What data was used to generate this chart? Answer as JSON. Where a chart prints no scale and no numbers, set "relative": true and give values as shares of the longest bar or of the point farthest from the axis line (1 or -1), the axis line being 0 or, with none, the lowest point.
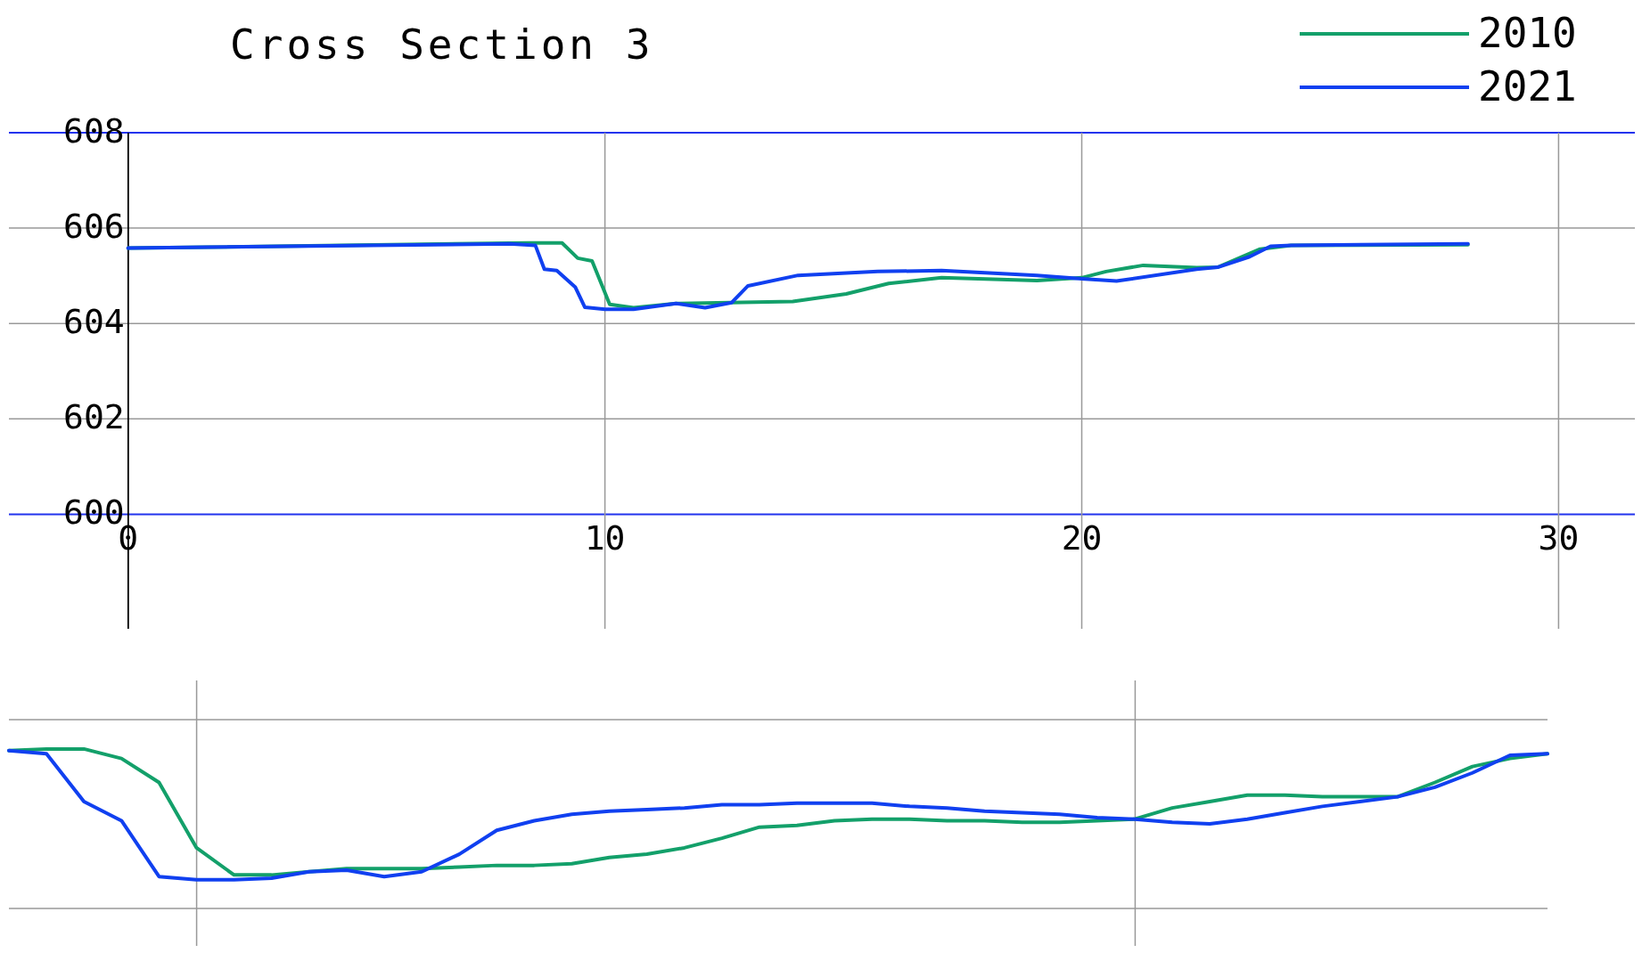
{
  "chart_data": [
    {
      "type": "line",
      "title": "Cross Section 3",
      "xlim": [
        -2.5,
        31.6
      ],
      "ylim": [
        597.6,
        608
      ],
      "xticks": [
        0,
        10,
        20,
        30
      ],
      "yticks": [
        600,
        602,
        604,
        606,
        608
      ],
      "grid": true,
      "legend": "top right",
      "series": [
        {
          "name": "2010",
          "color": "#13a06a",
          "x": [
            0,
            8.4,
            9.1,
            9.43,
            9.73,
            10.1,
            10.6,
            11.49,
            13.94,
            15.06,
            15.95,
            17.06,
            19.06,
            20.0,
            20.51,
            21.29,
            22.41,
            22.85,
            23.74,
            24.39,
            28.1
          ],
          "values": [
            605.58,
            605.69,
            605.69,
            605.37,
            605.31,
            604.4,
            604.33,
            604.42,
            604.46,
            604.62,
            604.84,
            604.96,
            604.9,
            604.96,
            605.09,
            605.22,
            605.17,
            605.18,
            605.56,
            605.64,
            605.65
          ]
        },
        {
          "name": "2021",
          "color": "#1040f0",
          "x": [
            0,
            8.0,
            8.54,
            8.73,
            8.99,
            9.38,
            9.58,
            10.0,
            10.6,
            11.49,
            12.1,
            12.66,
            13.0,
            14.05,
            15.72,
            17.06,
            19.06,
            20.0,
            20.73,
            22.41,
            22.85,
            23.52,
            23.96,
            24.39,
            28.1
          ],
          "values": [
            605.58,
            605.67,
            605.64,
            605.14,
            605.11,
            604.76,
            604.34,
            604.3,
            604.3,
            604.42,
            604.33,
            604.44,
            604.79,
            605.01,
            605.09,
            605.11,
            605.01,
            604.94,
            604.89,
            605.14,
            605.18,
            605.4,
            605.62,
            605.64,
            605.67
          ]
        }
      ]
    },
    {
      "type": "line",
      "relative": true,
      "grid": true,
      "categories": [
        null,
        null,
        null,
        null,
        null,
        null,
        null,
        null,
        null,
        null,
        null,
        null,
        null,
        null,
        null,
        null,
        null,
        null,
        null,
        null,
        null,
        null,
        null,
        null,
        null,
        null,
        null,
        null,
        null,
        null,
        null,
        null,
        null,
        null,
        null,
        null,
        null,
        null,
        null,
        null,
        null,
        null
      ],
      "series": [
        {
          "color": "#13a06a",
          "values": [
            0.99,
            1,
            1,
            0.94,
            0.79,
            0.38,
            0.21,
            0.21,
            0.23,
            0.25,
            0.25,
            0.25,
            0.26,
            0.27,
            0.27,
            0.28,
            0.32,
            0.34,
            0.38,
            0.44,
            0.51,
            0.52,
            0.55,
            0.56,
            0.56,
            0.55,
            0.55,
            0.54,
            0.54,
            0.55,
            0.56,
            0.63,
            0.67,
            0.71,
            0.71,
            0.7,
            0.7,
            0.7,
            0.79,
            0.89,
            0.94,
            0.97
          ]
        },
        {
          "color": "#1040f0",
          "values": [
            0.99,
            0.97,
            0.67,
            0.55,
            0.2,
            0.18,
            0.18,
            0.19,
            0.23,
            0.24,
            0.2,
            0.23,
            0.34,
            0.49,
            0.55,
            0.59,
            0.61,
            0.62,
            0.63,
            0.65,
            0.65,
            0.66,
            0.66,
            0.66,
            0.64,
            0.63,
            0.61,
            0.6,
            0.59,
            0.57,
            0.56,
            0.54,
            0.53,
            0.56,
            0.6,
            0.64,
            0.67,
            0.7,
            0.76,
            0.85,
            0.96,
            0.97
          ]
        }
      ]
    }
  ]
}
